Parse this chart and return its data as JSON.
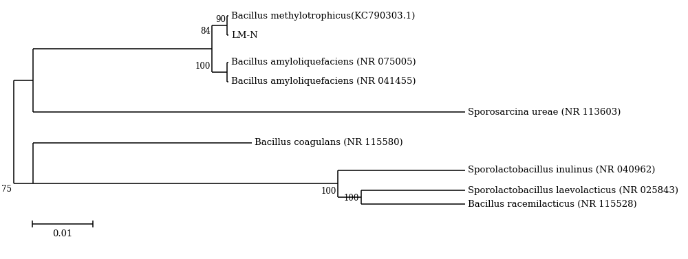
{
  "figsize": [
    10.0,
    3.77
  ],
  "dpi": 100,
  "background_color": "#ffffff",
  "line_color": "#000000",
  "line_width": 1.1,
  "font_size": 9.5,
  "taxa": [
    {
      "name": "Bacillus methylotrophicus(KC790303.1)",
      "bold": false
    },
    {
      "name": "LM-N",
      "bold": false
    },
    {
      "name": "Bacillus amyloliquefaciens (NR 075005)",
      "bold": false
    },
    {
      "name": "Bacillus amyloliquefaciens (NR 041455)",
      "bold": false
    },
    {
      "name": "Sporosarcina ureae (NR 113603)",
      "bold": false
    },
    {
      "name": "Bacillus coagulans (NR 115580)",
      "bold": false
    },
    {
      "name": "Sporolactobacillus inulinus (NR 040962)",
      "bold": false
    },
    {
      "name": "Sporolactobacillus laevolacticus (NR 025843)",
      "bold": false
    },
    {
      "name": "Bacillus racemilacticus (NR 115528)",
      "bold": false
    }
  ],
  "scale_label": "0.01"
}
